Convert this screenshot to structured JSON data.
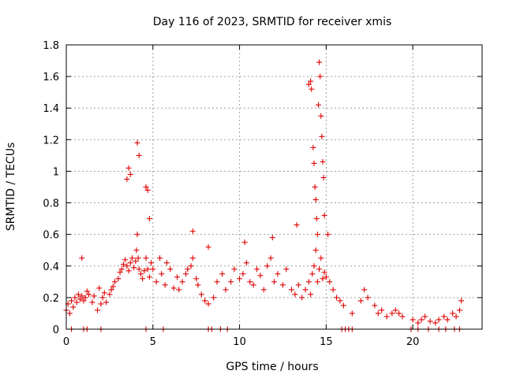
{
  "chart_data": {
    "type": "scatter",
    "title": "Day 116 of 2023, SRMTID for receiver xmis",
    "xlabel": "GPS time / hours",
    "ylabel": "SRMTID / TECUs",
    "xlim": [
      0,
      24
    ],
    "ylim": [
      0,
      1.8
    ],
    "xticks": [
      0,
      5,
      10,
      15,
      20
    ],
    "xtick_labels": [
      "0",
      "5",
      "10",
      "15",
      "20"
    ],
    "yticks": [
      0,
      0.2,
      0.4,
      0.6,
      0.8,
      1.0,
      1.2,
      1.4,
      1.6,
      1.8
    ],
    "ytick_labels": [
      "0",
      "0.2",
      "0.4",
      "0.6",
      "0.8",
      "1",
      "1.2",
      "1.4",
      "1.6",
      "1.8"
    ],
    "grid": true,
    "marker": "+",
    "marker_color": "#e00000",
    "series": [
      {
        "name": "SRMTID",
        "x": [
          0.0,
          0.1,
          0.2,
          0.3,
          0.4,
          0.5,
          0.6,
          0.7,
          0.8,
          0.9,
          1.0,
          1.1,
          1.2,
          1.3,
          1.5,
          1.6,
          1.8,
          2.0,
          2.1,
          2.2,
          2.3,
          2.5,
          2.6,
          2.7,
          2.8,
          3.0,
          3.1,
          3.2,
          3.3,
          3.4,
          3.5,
          3.6,
          3.7,
          3.8,
          3.9,
          4.0,
          4.05,
          4.1,
          4.15,
          4.2,
          4.3,
          4.4,
          4.5,
          4.6,
          4.7,
          4.8,
          4.9,
          5.0,
          5.2,
          5.4,
          5.5,
          5.7,
          5.8,
          6.0,
          6.2,
          6.4,
          6.5,
          6.7,
          6.9,
          7.0,
          7.2,
          7.3,
          7.5,
          7.6,
          7.8,
          8.0,
          8.2,
          8.5,
          8.7,
          9.0,
          9.2,
          9.5,
          9.7,
          10.0,
          10.2,
          10.4,
          10.6,
          10.8,
          11.0,
          11.2,
          11.4,
          11.6,
          11.8,
          12.0,
          12.2,
          12.5,
          12.7,
          13.0,
          13.2,
          13.4,
          13.6,
          13.8,
          14.0,
          14.1,
          14.2,
          14.3,
          14.4,
          14.5,
          14.6,
          14.7,
          14.8,
          14.9,
          15.0,
          15.2,
          15.4,
          15.6,
          15.8,
          16.0,
          16.5,
          17.0,
          17.2,
          17.4,
          17.8,
          18.0,
          18.2,
          18.5,
          18.8,
          19.0,
          19.2,
          19.4,
          20.0,
          20.3,
          20.5,
          20.7,
          21.0,
          21.3,
          21.5,
          21.8,
          22.0,
          22.3,
          22.5,
          22.7,
          22.8,
          0.9,
          1.9,
          3.5,
          3.6,
          3.7,
          4.1,
          4.2,
          4.6,
          4.7,
          4.8,
          7.3,
          8.2,
          10.3,
          11.9,
          13.3,
          14.0,
          14.1,
          14.15,
          14.25,
          14.3,
          14.35,
          14.4,
          14.45,
          14.5,
          14.55,
          14.6,
          14.65,
          14.7,
          14.75,
          14.8,
          14.85,
          14.9,
          15.1,
          0.3,
          1.0,
          1.2,
          2.0,
          4.6,
          5.6,
          8.2,
          8.4,
          8.9,
          9.3,
          15.9,
          16.1,
          16.3,
          16.5,
          19.9,
          20.3,
          20.9,
          21.5,
          21.9,
          22.4,
          22.7
        ],
        "y": [
          0.12,
          0.16,
          0.1,
          0.18,
          0.14,
          0.2,
          0.17,
          0.22,
          0.19,
          0.21,
          0.18,
          0.2,
          0.24,
          0.22,
          0.17,
          0.21,
          0.12,
          0.16,
          0.2,
          0.23,
          0.17,
          0.22,
          0.25,
          0.27,
          0.3,
          0.32,
          0.36,
          0.38,
          0.41,
          0.44,
          0.4,
          0.37,
          0.42,
          0.45,
          0.39,
          0.43,
          0.5,
          0.6,
          0.45,
          0.38,
          0.35,
          0.32,
          0.37,
          0.45,
          0.38,
          0.33,
          0.42,
          0.38,
          0.3,
          0.45,
          0.35,
          0.28,
          0.42,
          0.38,
          0.26,
          0.33,
          0.25,
          0.3,
          0.35,
          0.38,
          0.4,
          0.45,
          0.32,
          0.28,
          0.22,
          0.18,
          0.16,
          0.2,
          0.3,
          0.35,
          0.25,
          0.3,
          0.38,
          0.32,
          0.35,
          0.42,
          0.3,
          0.28,
          0.38,
          0.34,
          0.25,
          0.4,
          0.45,
          0.3,
          0.35,
          0.28,
          0.38,
          0.25,
          0.22,
          0.28,
          0.2,
          0.25,
          0.3,
          0.22,
          0.35,
          0.4,
          0.5,
          0.3,
          0.38,
          0.45,
          0.32,
          0.36,
          0.33,
          0.3,
          0.25,
          0.2,
          0.18,
          0.15,
          0.1,
          0.18,
          0.25,
          0.2,
          0.15,
          0.1,
          0.12,
          0.08,
          0.1,
          0.12,
          0.1,
          0.08,
          0.06,
          0.04,
          0.06,
          0.08,
          0.05,
          0.04,
          0.06,
          0.08,
          0.06,
          0.1,
          0.08,
          0.12,
          0.18,
          0.45,
          0.26,
          0.95,
          1.02,
          0.98,
          1.18,
          1.1,
          0.9,
          0.88,
          0.7,
          0.62,
          0.52,
          0.55,
          0.58,
          0.66,
          1.55,
          1.57,
          1.52,
          1.15,
          1.05,
          0.9,
          0.82,
          0.7,
          0.6,
          1.42,
          1.69,
          1.6,
          1.35,
          1.22,
          1.06,
          0.96,
          0.72,
          0.6,
          0,
          0,
          0,
          0,
          0,
          0,
          0,
          0,
          0,
          0,
          0,
          0,
          0,
          0,
          0,
          0,
          0,
          0,
          0,
          0,
          0
        ]
      }
    ]
  }
}
